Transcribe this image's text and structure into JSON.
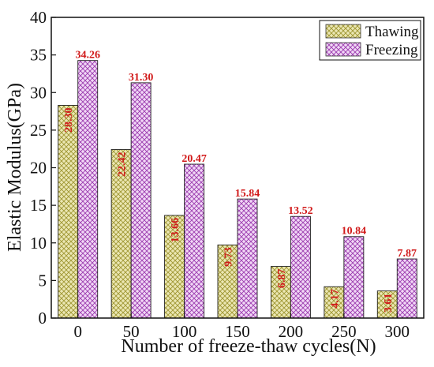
{
  "chart_data": {
    "type": "bar",
    "title": "",
    "xlabel": "Number of freeze-thaw cycles(N)",
    "ylabel": "Elastic Modulus(GPa)",
    "categories": [
      "0",
      "50",
      "100",
      "150",
      "200",
      "250",
      "300"
    ],
    "ylim": [
      0,
      40
    ],
    "yticks": [
      "0",
      "5",
      "10",
      "15",
      "20",
      "25",
      "30",
      "35",
      "40"
    ],
    "grid": false,
    "legend_position": "top-right",
    "series": [
      {
        "name": "Thawing",
        "values": [
          28.3,
          22.42,
          13.66,
          9.73,
          6.87,
          4.17,
          3.61
        ],
        "labels": [
          "28.30",
          "22.42",
          "13.66",
          "9.73",
          "6.87",
          "4.17",
          "3.61"
        ],
        "color": "#c8c26a"
      },
      {
        "name": "Freezing",
        "values": [
          34.26,
          31.3,
          20.47,
          15.84,
          13.52,
          10.84,
          7.87
        ],
        "labels": [
          "34.26",
          "31.30",
          "20.47",
          "15.84",
          "13.52",
          "10.84",
          "7.87"
        ],
        "color": "#b34fc4"
      }
    ],
    "label_color": "#d11a1a"
  }
}
